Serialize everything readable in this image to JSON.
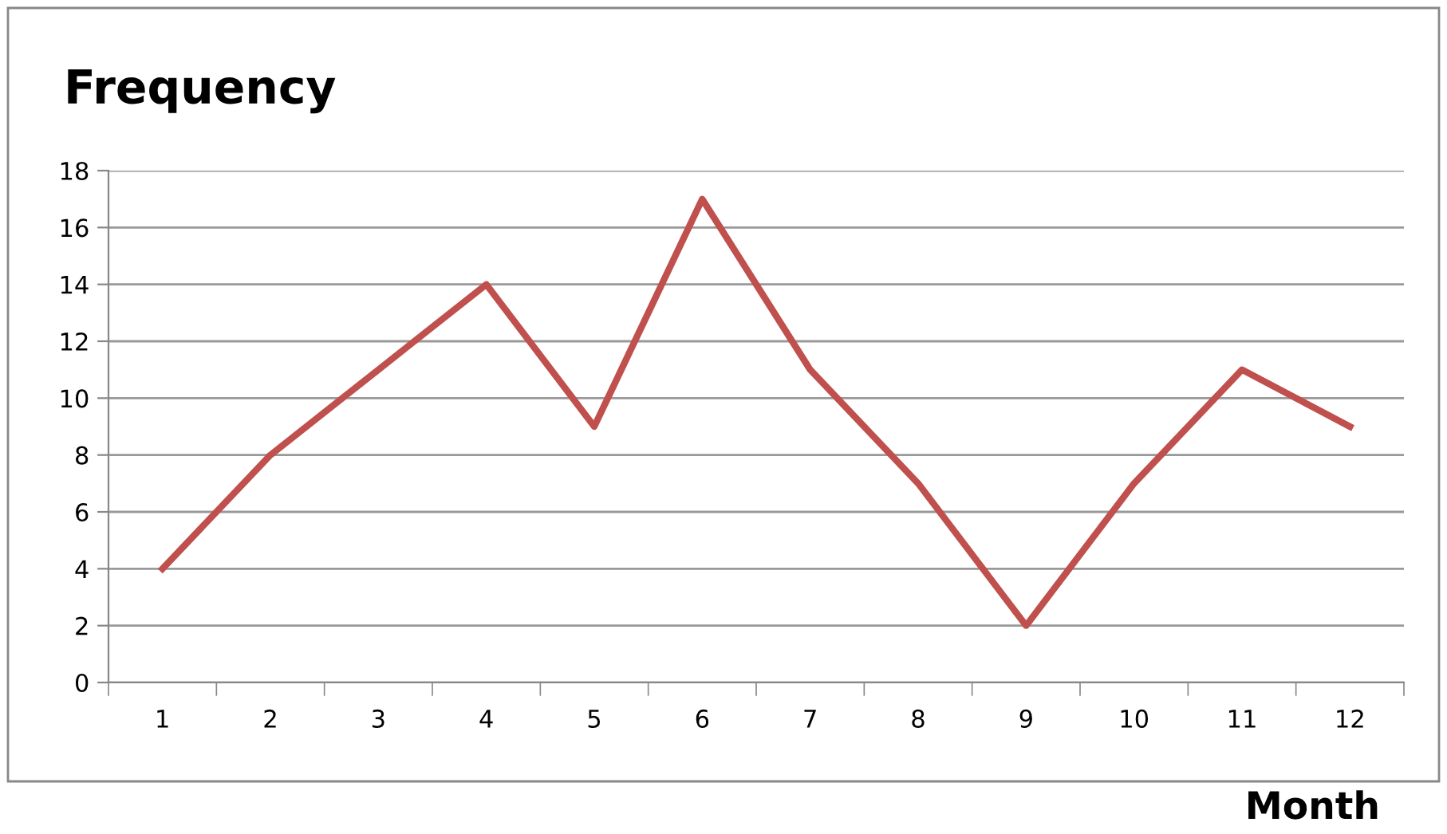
{
  "chart_data": {
    "type": "line",
    "ylabel": "Frequency",
    "xlabel": "Month",
    "categories": [
      "1",
      "2",
      "3",
      "4",
      "5",
      "6",
      "7",
      "8",
      "9",
      "10",
      "11",
      "12"
    ],
    "series": [
      {
        "color": "#c0504d",
        "values": [
          4,
          8,
          11,
          14,
          9,
          17,
          11,
          7,
          2,
          7,
          11,
          9
        ]
      }
    ],
    "ylim": [
      0,
      18
    ],
    "yticks": [
      0,
      2,
      4,
      6,
      8,
      10,
      12,
      14,
      16,
      18
    ],
    "grid": "y",
    "legend": false,
    "marker": "none",
    "line_style": "solid"
  }
}
